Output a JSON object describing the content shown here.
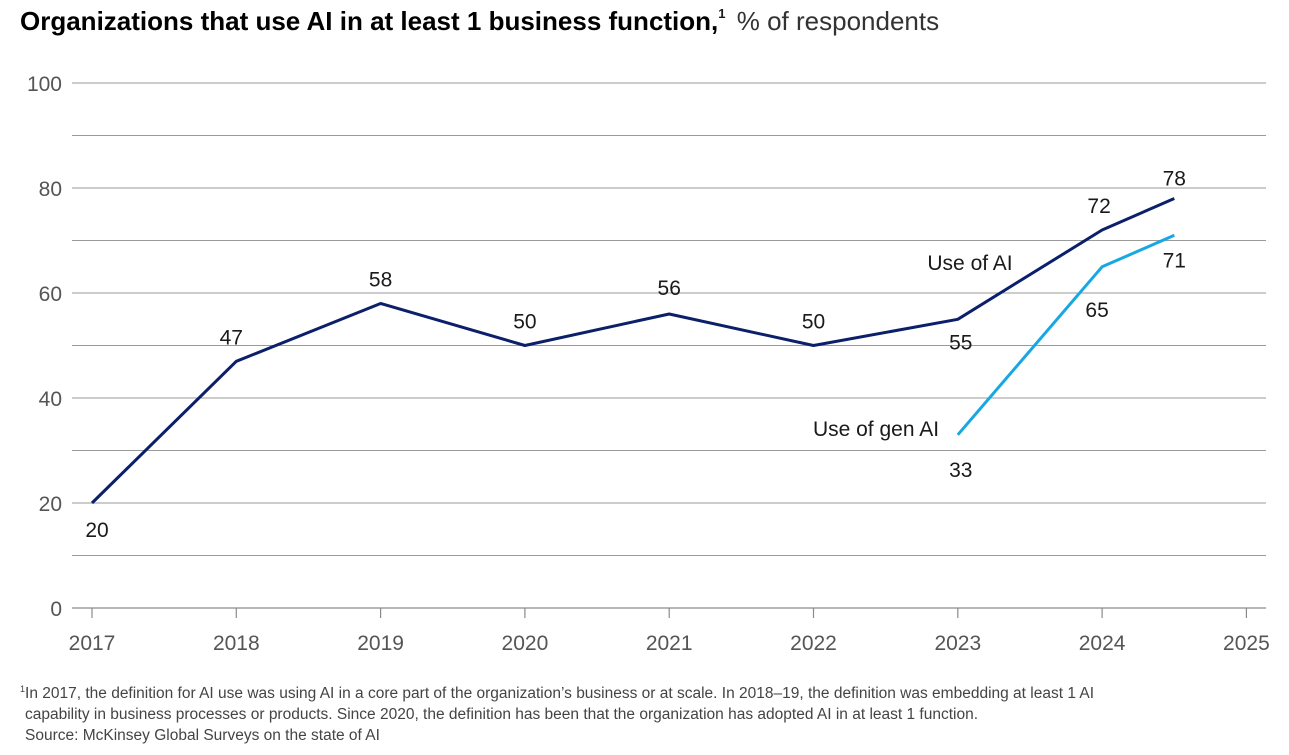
{
  "title": {
    "main": "Organizations that use AI in at least 1 business function,",
    "footnote_marker": "1",
    "subtitle": "% of respondents"
  },
  "colors": {
    "use_of_ai": "#0b1f6b",
    "use_of_gen_ai": "#17a8e3",
    "grid": "#9a9a9a"
  },
  "chart_data": {
    "type": "line",
    "x_ticks": [
      "2017",
      "2018",
      "2019",
      "2020",
      "2021",
      "2022",
      "2023",
      "2024",
      "2025"
    ],
    "y_ticks": [
      0,
      20,
      40,
      60,
      80,
      100
    ],
    "ylim": [
      0,
      100
    ],
    "xlim": [
      2017,
      2025
    ],
    "grid": true,
    "series": [
      {
        "name": "Use of AI",
        "points": [
          {
            "x": 2017,
            "y": 20,
            "label": "20"
          },
          {
            "x": 2018,
            "y": 47,
            "label": "47"
          },
          {
            "x": 2019,
            "y": 58,
            "label": "58"
          },
          {
            "x": 2020,
            "y": 50,
            "label": "50"
          },
          {
            "x": 2021,
            "y": 56,
            "label": "56"
          },
          {
            "x": 2022,
            "y": 50,
            "label": "50"
          },
          {
            "x": 2023,
            "y": 55,
            "label": "55"
          },
          {
            "x": 2024,
            "y": 72,
            "label": "72"
          },
          {
            "x": 2024.5,
            "y": 78,
            "label": "78"
          }
        ]
      },
      {
        "name": "Use of gen AI",
        "points": [
          {
            "x": 2023,
            "y": 33,
            "label": "33"
          },
          {
            "x": 2024,
            "y": 65,
            "label": "65"
          },
          {
            "x": 2024.5,
            "y": 71,
            "label": "71"
          }
        ]
      }
    ]
  },
  "footnotes": {
    "marker": "1",
    "line1": "In 2017, the definition for AI use was using AI in a core part of the organization’s business or at scale. In 2018–19, the definition was embedding at least 1 AI",
    "line2": "capability in business processes or products. Since 2020, the definition has been that the organization has adopted AI in at least 1 function.",
    "source": "Source: McKinsey Global Surveys on the state of AI"
  }
}
